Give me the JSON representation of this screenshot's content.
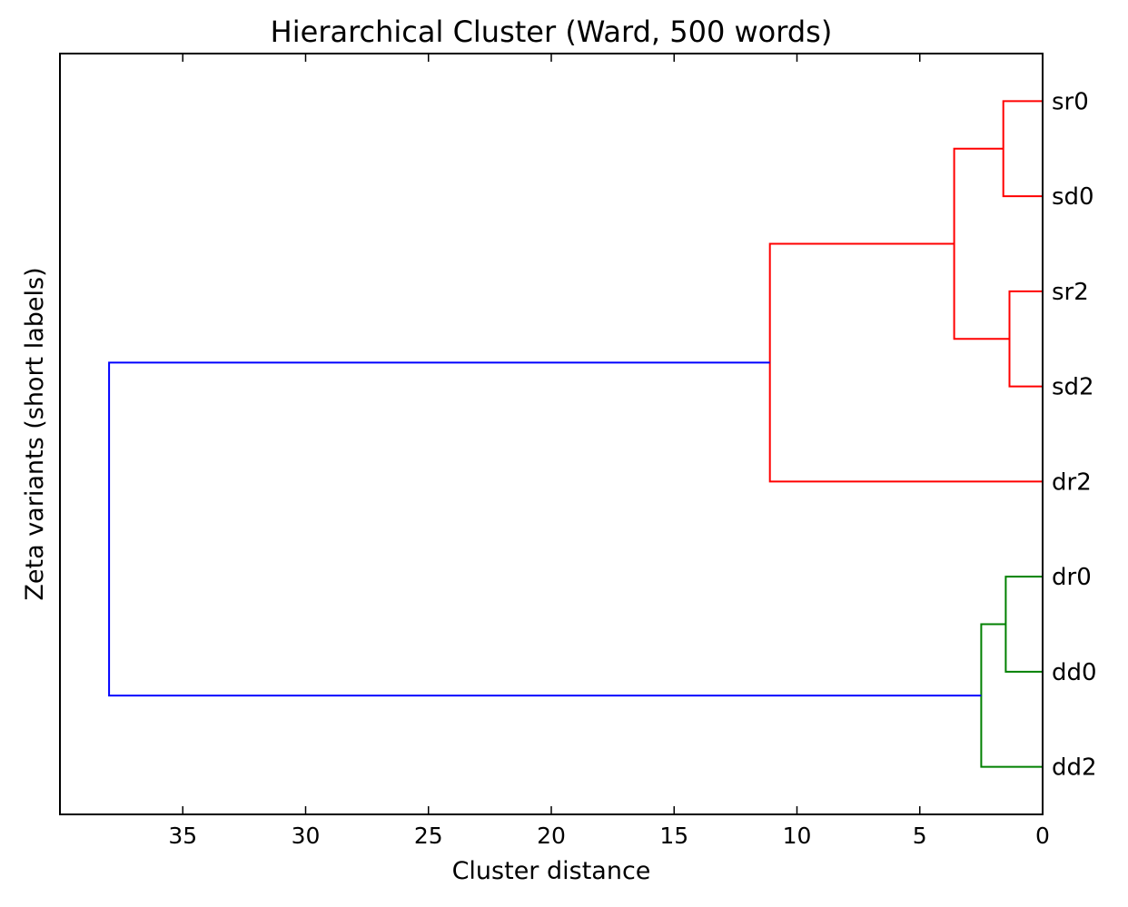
{
  "chart_data": {
    "type": "dendrogram",
    "title": "Hierarchical Cluster (Ward, 500 words)",
    "xlabel": "Cluster distance",
    "ylabel": "Zeta variants (short labels)",
    "xlim": [
      40,
      0
    ],
    "xticks": [
      35,
      30,
      25,
      20,
      15,
      10,
      5,
      0
    ],
    "leaves": [
      "sr0",
      "sd0",
      "sr2",
      "sd2",
      "dr2",
      "dr0",
      "dd0",
      "dd2"
    ],
    "colors": {
      "red_cluster": "#ff0000",
      "green_cluster": "#008000",
      "root": "#0000ff"
    },
    "links": [
      {
        "a": "sr0",
        "b": "sd0",
        "distance": 1.6,
        "color": "red_cluster"
      },
      {
        "a": "sr2",
        "b": "sd2",
        "distance": 1.35,
        "color": "red_cluster"
      },
      {
        "a": "sr0+sd0",
        "b": "sr2+sd2",
        "distance": 3.6,
        "color": "red_cluster"
      },
      {
        "a": "sr0+sd0+sr2+sd2",
        "b": "dr2",
        "distance": 11.1,
        "color": "red_cluster"
      },
      {
        "a": "dr0",
        "b": "dd0",
        "distance": 1.5,
        "color": "green_cluster"
      },
      {
        "a": "dr0+dd0",
        "b": "dd2",
        "distance": 2.5,
        "color": "green_cluster"
      },
      {
        "a": "sr0+sd0+sr2+sd2+dr2",
        "b": "dr0+dd0+dd2",
        "distance": 38.0,
        "color": "root"
      }
    ]
  }
}
